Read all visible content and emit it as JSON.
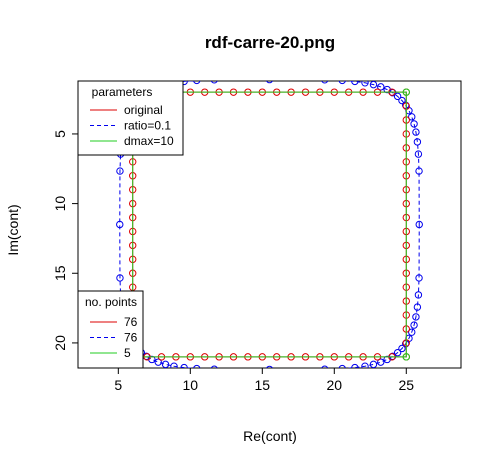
{
  "chart_data": {
    "type": "line",
    "title": "rdf-carre-20.png",
    "xlabel": "Re(cont)",
    "ylabel": "Im(cont)",
    "xlim": [
      2.2,
      28.8
    ],
    "ylim": [
      21.8,
      1.2
    ],
    "y_reversed": true,
    "x_ticks": [
      5,
      10,
      15,
      20,
      25
    ],
    "y_ticks": [
      5,
      10,
      15,
      20
    ],
    "grid": false,
    "series": [
      {
        "name": "original",
        "style": "solid",
        "color": "#dd0000",
        "marker": "circle",
        "shape": "square",
        "x_range": [
          6,
          25
        ],
        "y_range": [
          2,
          21
        ],
        "points_per_side": 19,
        "n_points": 76
      },
      {
        "name": "ratio=0.1",
        "style": "dashed",
        "color": "#0000ee",
        "marker": "circle",
        "shape": "rounded-square",
        "center": [
          15.5,
          11.5
        ],
        "half_width": 10.4,
        "half_height": 10.4,
        "superellipse_exponent": 5,
        "n_points": 76
      },
      {
        "name": "dmax=10",
        "style": "solid",
        "color": "#22cc22",
        "marker": "circle",
        "corners": [
          [
            25,
            2
          ],
          [
            25,
            21
          ],
          [
            6,
            21
          ],
          [
            6,
            2
          ]
        ],
        "n_points": 5
      }
    ],
    "legends": [
      {
        "title": "parameters",
        "placement": "top-left",
        "entries": [
          {
            "label": "original",
            "color": "#dd0000",
            "style": "solid"
          },
          {
            "label": "ratio=0.1",
            "color": "#0000ee",
            "style": "dashed"
          },
          {
            "label": "dmax=10",
            "color": "#22cc22",
            "style": "solid"
          }
        ]
      },
      {
        "title": "no. points",
        "placement": "bottom-left",
        "entries": [
          {
            "label": "76",
            "color": "#dd0000",
            "style": "solid"
          },
          {
            "label": "76",
            "color": "#0000ee",
            "style": "dashed"
          },
          {
            "label": "5",
            "color": "#22cc22",
            "style": "solid"
          }
        ]
      }
    ]
  }
}
